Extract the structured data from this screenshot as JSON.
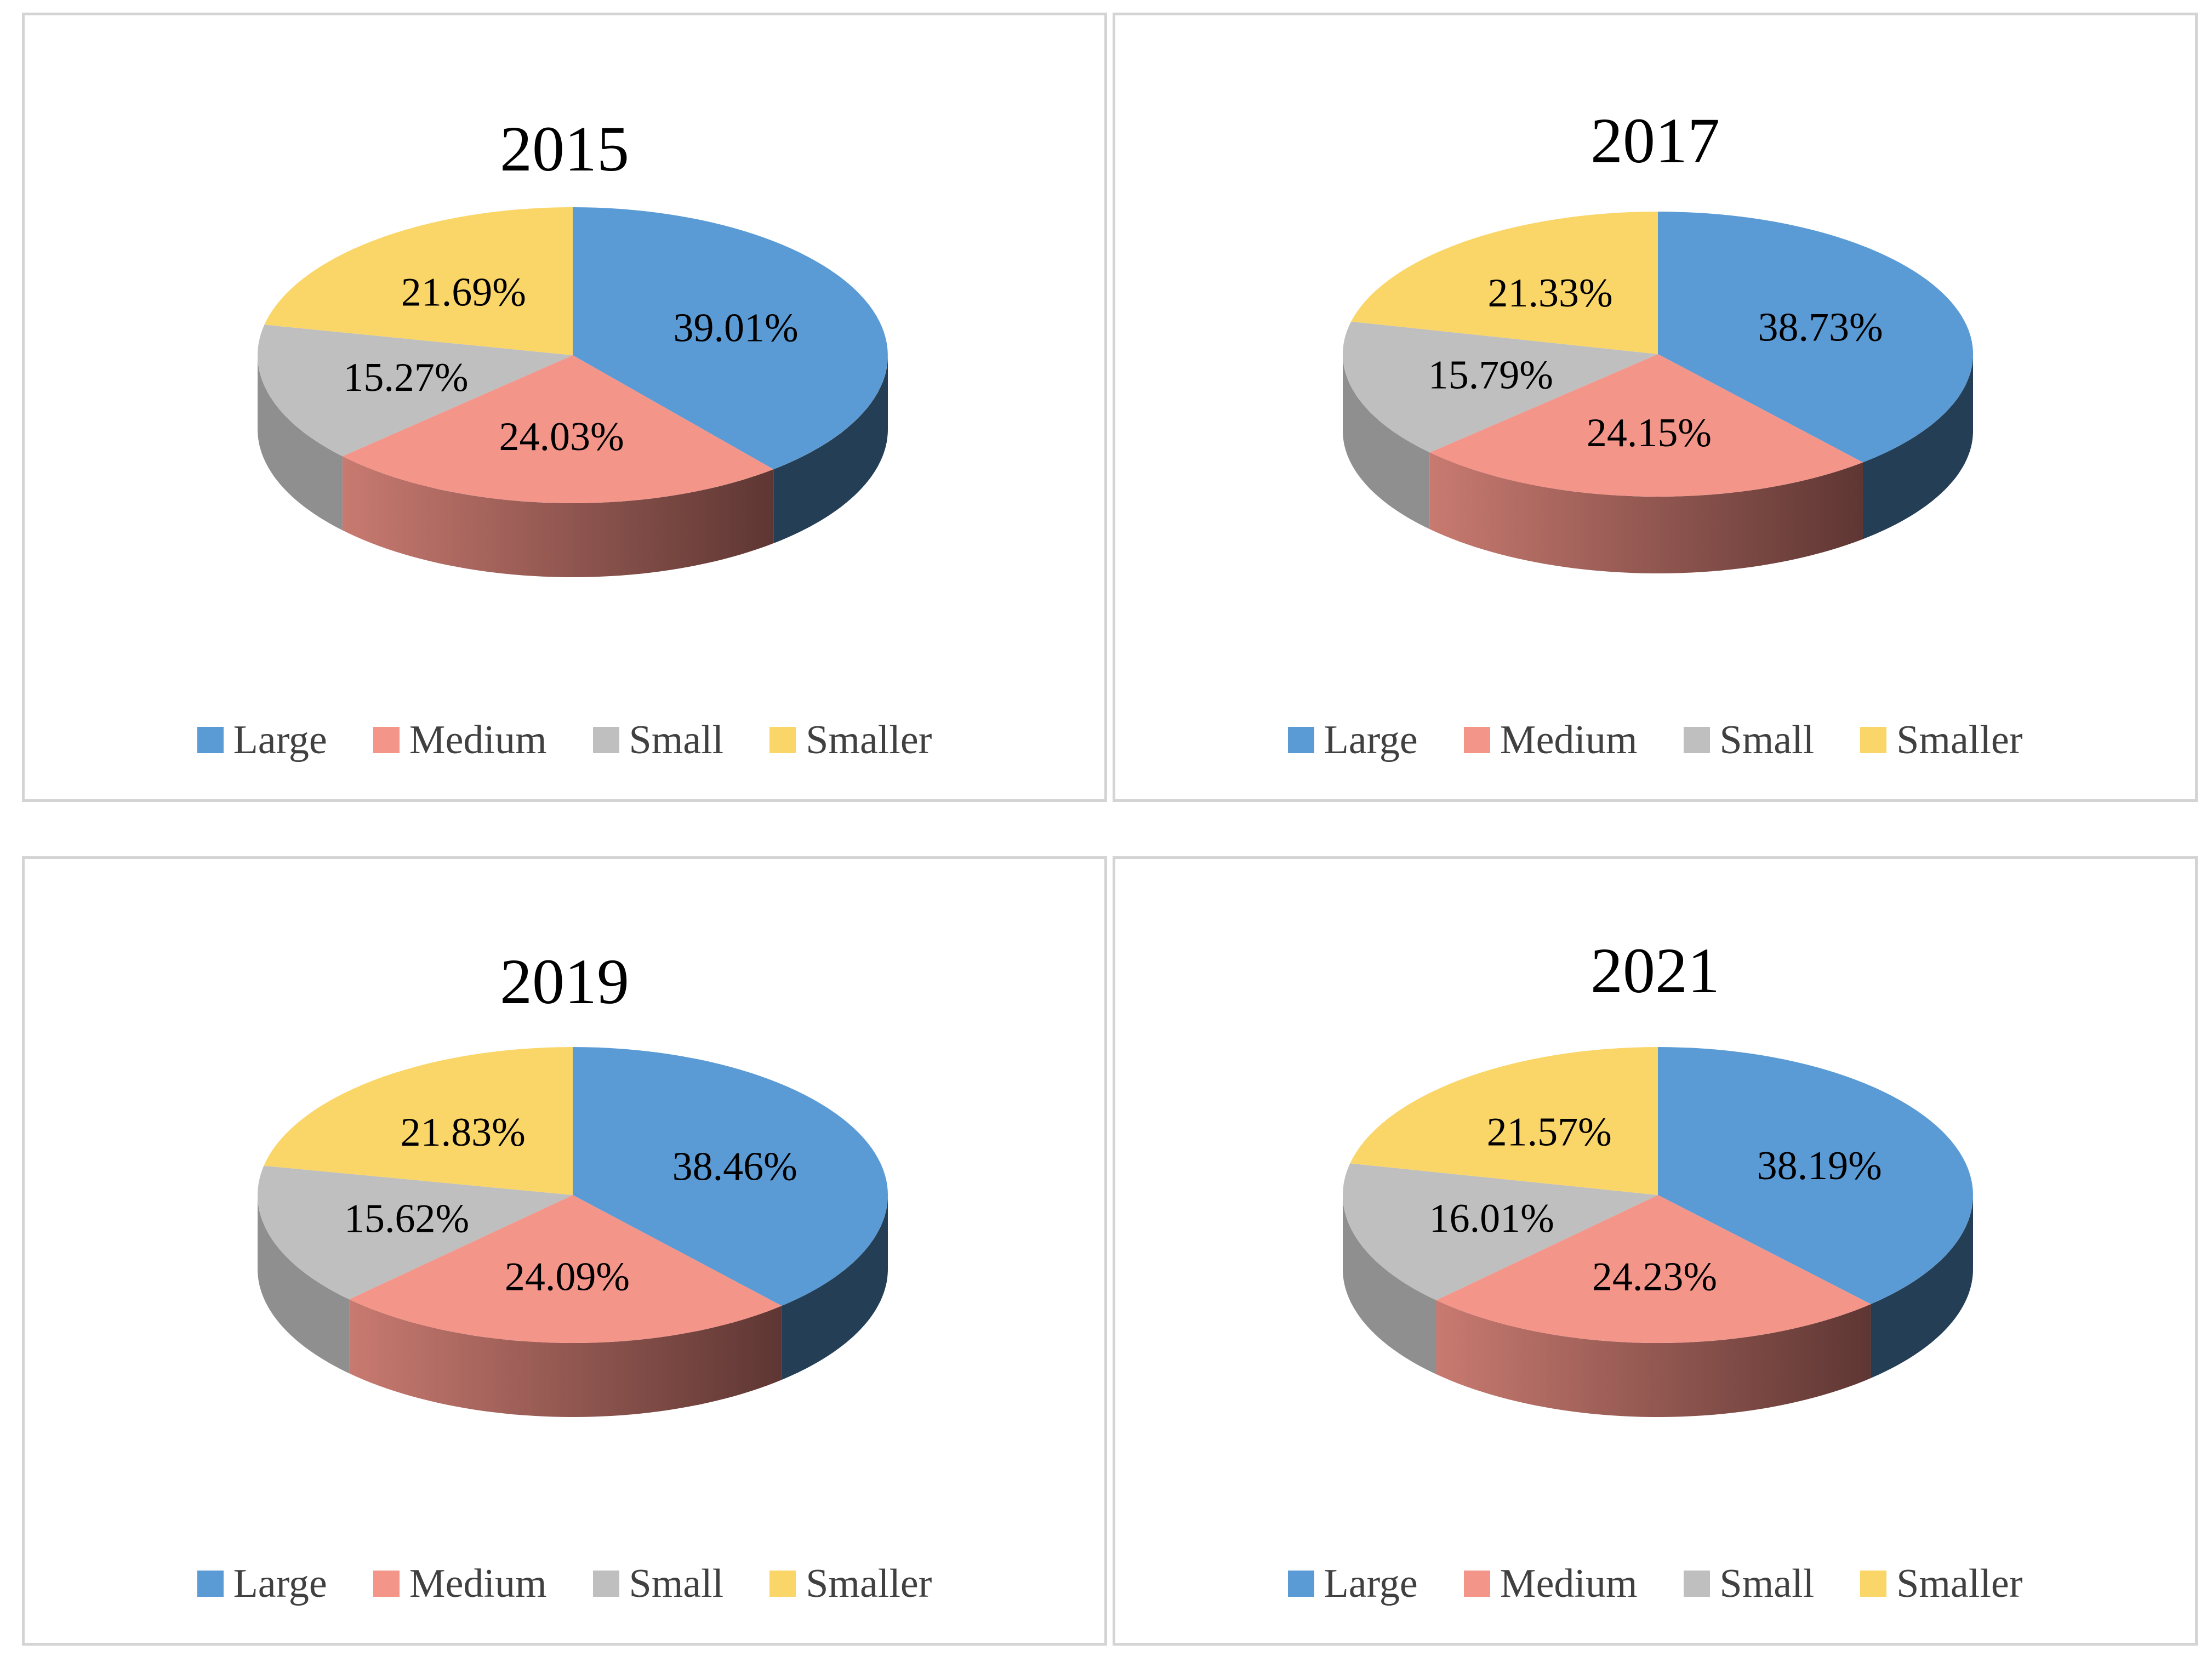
{
  "colors": {
    "Large": "#5B9BD5",
    "Medium": "#F4958A",
    "Small": "#BFBFBF",
    "Smaller": "#FAD668",
    "Large_side": "#243E56",
    "Medium_side_light": "#C87A70",
    "Medium_side_dark": "#5E3633",
    "Small_side": "#8F8F8F",
    "Smaller_side": "#B8A04D"
  },
  "legend": [
    "Large",
    "Medium",
    "Small",
    "Smaller"
  ],
  "chart_data": [
    {
      "type": "pie",
      "title": "2015",
      "categories": [
        "Large",
        "Medium",
        "Small",
        "Smaller"
      ],
      "values": [
        39.01,
        24.03,
        15.27,
        21.69
      ],
      "labels": [
        "39.01%",
        "24.03%",
        "15.27%",
        "21.69%"
      ]
    },
    {
      "type": "pie",
      "title": "2017",
      "categories": [
        "Large",
        "Medium",
        "Small",
        "Smaller"
      ],
      "values": [
        38.73,
        24.15,
        15.79,
        21.33
      ],
      "labels": [
        "38.73%",
        "24.15%",
        "15.79%",
        "21.33%"
      ]
    },
    {
      "type": "pie",
      "title": "2019",
      "categories": [
        "Large",
        "Medium",
        "Small",
        "Smaller"
      ],
      "values": [
        38.46,
        24.09,
        15.62,
        21.83
      ],
      "labels": [
        "38.46%",
        "24.09%",
        "15.62%",
        "21.83%"
      ]
    },
    {
      "type": "pie",
      "title": "2021",
      "categories": [
        "Large",
        "Medium",
        "Small",
        "Smaller"
      ],
      "values": [
        38.19,
        24.23,
        16.01,
        21.57
      ],
      "labels": [
        "38.19%",
        "24.23%",
        "16.01%",
        "21.57%"
      ]
    }
  ]
}
